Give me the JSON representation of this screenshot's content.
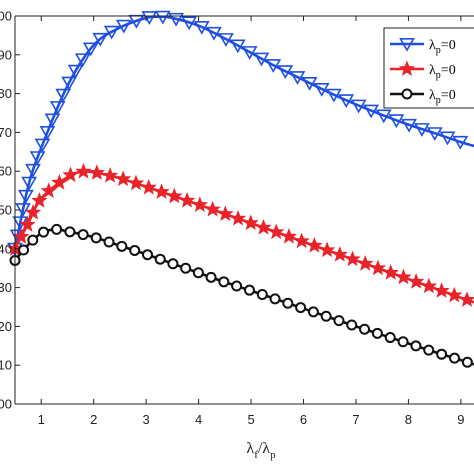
{
  "chart_data": {
    "type": "line",
    "title": "",
    "xlabel_main": "λ",
    "xlabel_sub1": "f",
    "xlabel_slash": "/λ",
    "xlabel_sub2": "p",
    "ylabel": "",
    "xlim": [
      0.5,
      9.25
    ],
    "ylim": [
      0,
      10
    ],
    "x_ticks": [
      "1",
      "2",
      "3",
      "4",
      "5",
      "6",
      "7",
      "8",
      "9"
    ],
    "y_tick_values": [
      0,
      1,
      2,
      3,
      4,
      5,
      6,
      7,
      8,
      9,
      10
    ],
    "y_tick_labels": [
      "00",
      "10",
      "20",
      "30",
      "40",
      "50",
      "60",
      "70",
      "80",
      "90",
      "00"
    ],
    "grid": false,
    "legend_position": "top-right",
    "series": [
      {
        "name_main": "λ",
        "name_sub": "p",
        "name_tail": "=0",
        "color": "#1f4fe0",
        "marker": "triangle-down",
        "x": [
          0.5,
          0.75,
          1.0,
          1.5,
          2.0,
          2.5,
          3.0,
          3.25,
          3.5,
          4.0,
          4.5,
          5.0,
          5.5,
          6.0,
          6.5,
          7.0,
          7.5,
          8.0,
          8.5,
          9.0,
          9.25
        ],
        "values": [
          4.0,
          5.6,
          6.6,
          8.2,
          9.25,
          9.7,
          9.95,
          9.98,
          9.95,
          9.75,
          9.42,
          9.05,
          8.68,
          8.35,
          8.02,
          7.72,
          7.45,
          7.2,
          6.98,
          6.75,
          6.65
        ]
      },
      {
        "name_main": "λ",
        "name_sub": "p",
        "name_tail": "=0",
        "color": "#e8232a",
        "marker": "star",
        "x": [
          0.5,
          0.75,
          1.0,
          1.5,
          1.75,
          2.0,
          2.5,
          3.0,
          3.5,
          4.0,
          4.5,
          5.0,
          5.5,
          6.0,
          6.5,
          7.0,
          7.5,
          8.0,
          8.5,
          9.0,
          9.25
        ],
        "values": [
          4.0,
          4.65,
          5.3,
          5.85,
          5.98,
          5.97,
          5.82,
          5.6,
          5.37,
          5.14,
          4.9,
          4.66,
          4.42,
          4.18,
          3.94,
          3.7,
          3.46,
          3.22,
          2.98,
          2.74,
          2.62
        ]
      },
      {
        "name_main": "λ",
        "name_sub": "p",
        "name_tail": "=0",
        "color": "#111111",
        "marker": "circle",
        "x": [
          0.5,
          0.75,
          1.0,
          1.25,
          1.5,
          2.0,
          2.5,
          3.0,
          3.5,
          4.0,
          4.5,
          5.0,
          5.5,
          6.0,
          6.5,
          7.0,
          7.5,
          8.0,
          8.5,
          9.0,
          9.25
        ],
        "values": [
          3.7,
          4.1,
          4.4,
          4.5,
          4.45,
          4.3,
          4.08,
          3.86,
          3.62,
          3.38,
          3.14,
          2.92,
          2.69,
          2.46,
          2.23,
          2.0,
          1.78,
          1.56,
          1.34,
          1.13,
          1.02
        ]
      }
    ]
  }
}
